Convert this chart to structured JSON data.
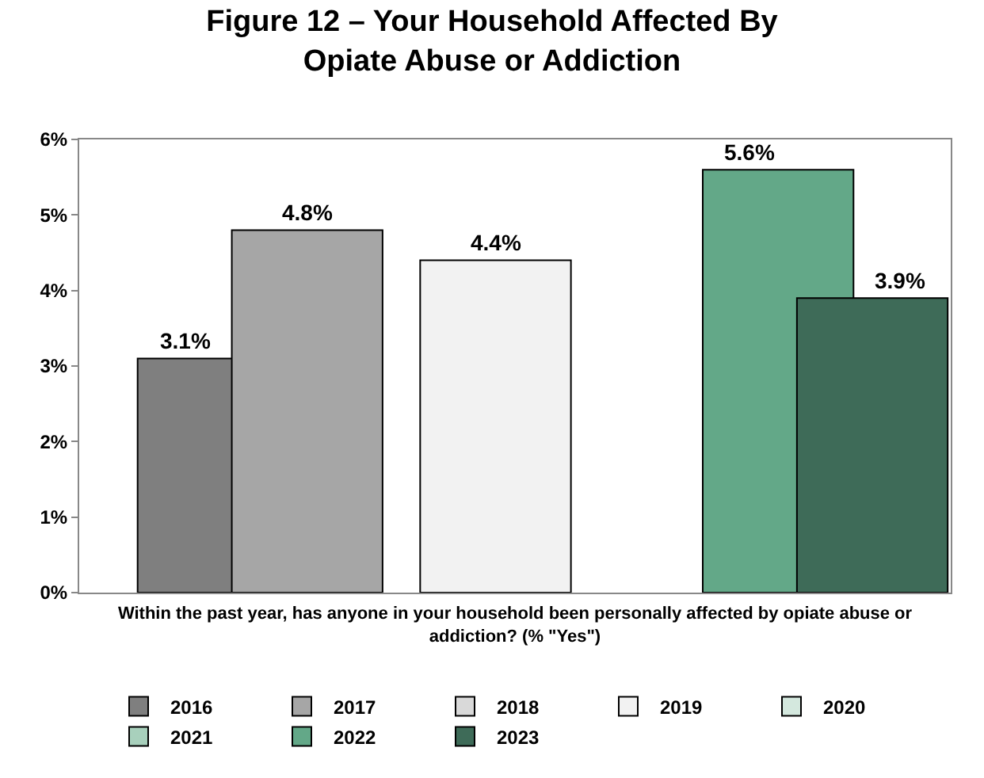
{
  "chart_data": {
    "type": "bar",
    "title": "Figure 12 – Your Household Affected By Opiate Abuse or Addiction",
    "xlabel": "Within the past year, has anyone in your household been personally affected by opiate abuse or addiction? (% \"Yes\")",
    "categories": [
      null
    ],
    "series": [
      {
        "name": "2016",
        "color": "#7f7f7f",
        "values": [
          3.1
        ],
        "value_labels": [
          "3.1%"
        ]
      },
      {
        "name": "2017",
        "color": "#a6a6a6",
        "values": [
          4.8
        ],
        "value_labels": [
          "4.8%"
        ]
      },
      {
        "name": "2018",
        "color": "#d9d9d9",
        "values": [
          null
        ],
        "value_labels": [
          null
        ]
      },
      {
        "name": "2019",
        "color": "#f2f2f2",
        "values": [
          4.4
        ],
        "value_labels": [
          "4.4%"
        ]
      },
      {
        "name": "2020",
        "color": "#d4e8de",
        "values": [
          null
        ],
        "value_labels": [
          null
        ]
      },
      {
        "name": "2021",
        "color": "#a8d0bc",
        "values": [
          null
        ],
        "value_labels": [
          null
        ]
      },
      {
        "name": "2022",
        "color": "#63a888",
        "values": [
          5.6
        ],
        "value_labels": [
          "5.6%"
        ]
      },
      {
        "name": "2023",
        "color": "#3e6b58",
        "values": [
          3.9
        ],
        "value_labels": [
          "3.9%"
        ]
      }
    ],
    "ylim": [
      0,
      6
    ],
    "yticks": [
      {
        "value": 0,
        "label": "0%"
      },
      {
        "value": 1,
        "label": "1%"
      },
      {
        "value": 2,
        "label": "2%"
      },
      {
        "value": 3,
        "label": "3%"
      },
      {
        "value": 4,
        "label": "4%"
      },
      {
        "value": 5,
        "label": "5%"
      },
      {
        "value": 6,
        "label": "6%"
      }
    ],
    "grid": false,
    "legend": "bottom"
  }
}
